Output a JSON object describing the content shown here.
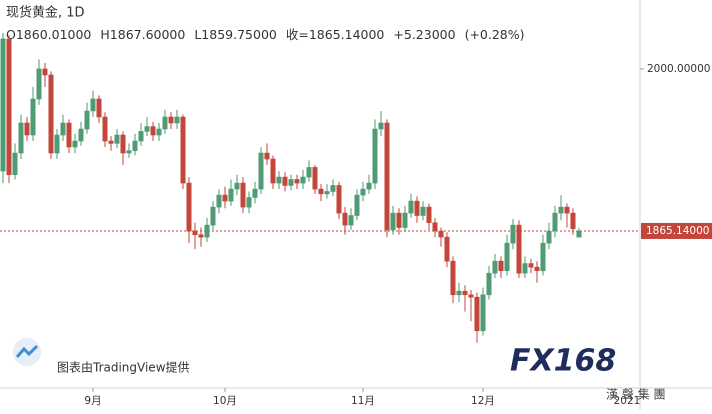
{
  "chart_data": {
    "type": "candlestick",
    "title": "现货黄金, 1D",
    "header": [
      "O1860.01000",
      "H1867.60000",
      "L1859.75000",
      "收=1865.14000",
      "+5.23000",
      "(+0.28%)"
    ],
    "up_color": "#4f9b74",
    "down_color": "#c4463a",
    "xlim": [
      -0.5,
      106.17
    ],
    "ylim": [
      1734.4,
      2057.4
    ],
    "xticks": [
      {
        "value": 15,
        "label": "9月"
      },
      {
        "value": 37,
        "label": "10月"
      },
      {
        "value": 60,
        "label": "11月"
      },
      {
        "value": 80,
        "label": "12月"
      },
      {
        "value": 104,
        "label": "2021"
      }
    ],
    "yticks": [
      {
        "value": 2000,
        "label": "2000.00000"
      }
    ],
    "price_line": {
      "value": 1865.14,
      "label": "1865.14000"
    },
    "watermarks": [
      "图表由TradingView提供",
      "FX168",
      "漢 聲 集 團"
    ],
    "ohlc": [
      [
        1915,
        2030,
        1905,
        2025
      ],
      [
        2025,
        2028,
        1905,
        1912
      ],
      [
        1912,
        1938,
        1908,
        1930
      ],
      [
        1930,
        1962,
        1925,
        1955
      ],
      [
        1955,
        1960,
        1940,
        1945
      ],
      [
        1945,
        1985,
        1940,
        1975
      ],
      [
        1975,
        2008,
        1970,
        2000
      ],
      [
        2000,
        2005,
        1985,
        1995
      ],
      [
        1995,
        1998,
        1925,
        1930
      ],
      [
        1930,
        1950,
        1925,
        1945
      ],
      [
        1945,
        1962,
        1940,
        1955
      ],
      [
        1955,
        1958,
        1930,
        1935
      ],
      [
        1935,
        1946,
        1930,
        1940
      ],
      [
        1940,
        1956,
        1936,
        1950
      ],
      [
        1950,
        1972,
        1946,
        1965
      ],
      [
        1965,
        1982,
        1960,
        1975
      ],
      [
        1975,
        1978,
        1955,
        1960
      ],
      [
        1960,
        1964,
        1935,
        1940
      ],
      [
        1940,
        1944,
        1932,
        1938
      ],
      [
        1938,
        1950,
        1934,
        1945
      ],
      [
        1945,
        1948,
        1920,
        1930
      ],
      [
        1930,
        1938,
        1926,
        1932
      ],
      [
        1932,
        1946,
        1928,
        1940
      ],
      [
        1940,
        1955,
        1936,
        1948
      ],
      [
        1948,
        1960,
        1944,
        1952
      ],
      [
        1952,
        1956,
        1940,
        1945
      ],
      [
        1945,
        1955,
        1940,
        1950
      ],
      [
        1950,
        1966,
        1946,
        1960
      ],
      [
        1960,
        1964,
        1950,
        1955
      ],
      [
        1955,
        1966,
        1950,
        1960
      ],
      [
        1960,
        1962,
        1900,
        1905
      ],
      [
        1905,
        1910,
        1855,
        1865
      ],
      [
        1865,
        1872,
        1850,
        1862
      ],
      [
        1862,
        1868,
        1852,
        1860
      ],
      [
        1860,
        1876,
        1856,
        1870
      ],
      [
        1870,
        1890,
        1866,
        1885
      ],
      [
        1885,
        1900,
        1880,
        1895
      ],
      [
        1895,
        1902,
        1884,
        1890
      ],
      [
        1890,
        1908,
        1886,
        1900
      ],
      [
        1900,
        1912,
        1895,
        1905
      ],
      [
        1905,
        1910,
        1880,
        1885
      ],
      [
        1885,
        1898,
        1880,
        1893
      ],
      [
        1893,
        1906,
        1888,
        1900
      ],
      [
        1900,
        1935,
        1896,
        1930
      ],
      [
        1930,
        1938,
        1920,
        1925
      ],
      [
        1925,
        1928,
        1900,
        1905
      ],
      [
        1905,
        1915,
        1900,
        1910
      ],
      [
        1910,
        1914,
        1898,
        1903
      ],
      [
        1903,
        1912,
        1899,
        1908
      ],
      [
        1908,
        1912,
        1900,
        1905
      ],
      [
        1905,
        1916,
        1900,
        1910
      ],
      [
        1910,
        1924,
        1906,
        1918
      ],
      [
        1918,
        1920,
        1896,
        1900
      ],
      [
        1900,
        1904,
        1890,
        1896
      ],
      [
        1896,
        1904,
        1892,
        1898
      ],
      [
        1898,
        1908,
        1894,
        1903
      ],
      [
        1903,
        1906,
        1875,
        1880
      ],
      [
        1880,
        1885,
        1862,
        1870
      ],
      [
        1870,
        1884,
        1866,
        1878
      ],
      [
        1878,
        1900,
        1874,
        1895
      ],
      [
        1895,
        1906,
        1890,
        1900
      ],
      [
        1900,
        1912,
        1896,
        1905
      ],
      [
        1905,
        1958,
        1900,
        1950
      ],
      [
        1950,
        1965,
        1944,
        1955
      ],
      [
        1955,
        1958,
        1860,
        1866
      ],
      [
        1866,
        1886,
        1862,
        1880
      ],
      [
        1880,
        1884,
        1862,
        1868
      ],
      [
        1868,
        1886,
        1864,
        1880
      ],
      [
        1880,
        1896,
        1876,
        1890
      ],
      [
        1890,
        1894,
        1872,
        1878
      ],
      [
        1878,
        1890,
        1874,
        1885
      ],
      [
        1885,
        1888,
        1866,
        1872
      ],
      [
        1872,
        1876,
        1860,
        1865
      ],
      [
        1865,
        1868,
        1852,
        1860
      ],
      [
        1860,
        1864,
        1835,
        1840
      ],
      [
        1840,
        1844,
        1805,
        1812
      ],
      [
        1812,
        1822,
        1806,
        1815
      ],
      [
        1815,
        1820,
        1798,
        1812
      ],
      [
        1812,
        1816,
        1790,
        1810
      ],
      [
        1810,
        1814,
        1772,
        1782
      ],
      [
        1782,
        1818,
        1778,
        1812
      ],
      [
        1812,
        1836,
        1808,
        1830
      ],
      [
        1830,
        1846,
        1826,
        1840
      ],
      [
        1840,
        1844,
        1826,
        1832
      ],
      [
        1832,
        1862,
        1828,
        1855
      ],
      [
        1855,
        1875,
        1850,
        1870
      ],
      [
        1870,
        1874,
        1826,
        1830
      ],
      [
        1830,
        1844,
        1826,
        1838
      ],
      [
        1838,
        1842,
        1830,
        1835
      ],
      [
        1835,
        1840,
        1822,
        1832
      ],
      [
        1832,
        1862,
        1828,
        1855
      ],
      [
        1855,
        1872,
        1850,
        1865
      ],
      [
        1865,
        1886,
        1860,
        1880
      ],
      [
        1880,
        1895,
        1874,
        1885
      ],
      [
        1885,
        1888,
        1868,
        1880
      ],
      [
        1880,
        1884,
        1862,
        1867
      ],
      [
        1860.01,
        1867.6,
        1859.75,
        1865.14
      ]
    ]
  }
}
